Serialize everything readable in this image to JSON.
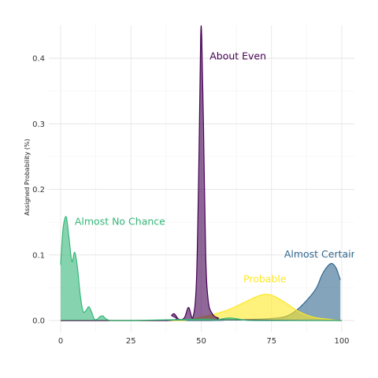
{
  "chart_data": {
    "type": "area",
    "title": "",
    "xlabel": "",
    "ylabel": "Assigned Probability (%)",
    "xlim": [
      -2,
      102
    ],
    "ylim": [
      -0.013,
      0.45
    ],
    "x_ticks": [
      0,
      25,
      50,
      75,
      100
    ],
    "x_tick_labels": [
      "0",
      "25",
      "50",
      "75",
      "100"
    ],
    "y_ticks": [
      0.0,
      0.1,
      0.2,
      0.3,
      0.4
    ],
    "y_tick_labels": [
      "0.0",
      "0.1",
      "0.2",
      "0.3",
      "0.4"
    ],
    "grid": true,
    "legend": "none",
    "series": [
      {
        "name": "Almost Certainly",
        "color": "#31688e",
        "x": [
          0,
          50,
          60,
          70,
          75,
          80,
          84,
          88,
          91,
          93,
          95,
          96.5,
          98,
          99,
          99.5
        ],
        "values": [
          0,
          0,
          0.001,
          0.002,
          0.003,
          0.006,
          0.016,
          0.033,
          0.05,
          0.07,
          0.083,
          0.087,
          0.08,
          0.068,
          0.062
        ]
      },
      {
        "name": "Probable",
        "color": "#fde725",
        "x": [
          0,
          40,
          45,
          50,
          55,
          60,
          65,
          70,
          73,
          76,
          80,
          85,
          90,
          95,
          99.5
        ],
        "values": [
          0,
          0,
          0.001,
          0.005,
          0.01,
          0.017,
          0.027,
          0.037,
          0.04,
          0.037,
          0.027,
          0.013,
          0.005,
          0.002,
          0
        ]
      },
      {
        "name": "About Even",
        "color": "#440154",
        "x": [
          0,
          38,
          39.5,
          40.5,
          42,
          44,
          45.5,
          47,
          48.3,
          49.2,
          49.8,
          50.2,
          50.8,
          51.6,
          52.5,
          54,
          56,
          60,
          100
        ],
        "values": [
          0,
          0,
          0.008,
          0.01,
          0.002,
          0.004,
          0.02,
          0.004,
          0.06,
          0.25,
          0.43,
          0.43,
          0.3,
          0.1,
          0.03,
          0.01,
          0.004,
          0.001,
          0
        ]
      },
      {
        "name": "Almost No Chance",
        "color": "#35b779",
        "x": [
          0,
          0.5,
          1,
          2,
          3,
          4,
          5,
          6,
          7,
          8,
          9,
          10,
          11,
          12,
          13,
          14,
          15,
          16,
          18,
          25,
          50,
          55,
          60,
          65,
          70,
          100
        ],
        "values": [
          0.085,
          0.12,
          0.145,
          0.158,
          0.125,
          0.09,
          0.104,
          0.08,
          0.038,
          0.014,
          0.015,
          0.021,
          0.013,
          0.002,
          0.002,
          0.006,
          0.007,
          0.003,
          0,
          0,
          0.002,
          0.001,
          0.004,
          0.001,
          0,
          0
        ]
      }
    ],
    "annotations": [
      {
        "text": "About Even",
        "x": 53,
        "y": 0.398,
        "color": "#440154"
      },
      {
        "text": "Almost No Chance",
        "x": 5,
        "y": 0.146,
        "color": "#35b779"
      },
      {
        "text": "Almost Certainly",
        "x": 79.5,
        "y": 0.096,
        "color": "#31688e"
      },
      {
        "text": "Probable",
        "x": 65,
        "y": 0.058,
        "color": "#fde725"
      }
    ]
  }
}
